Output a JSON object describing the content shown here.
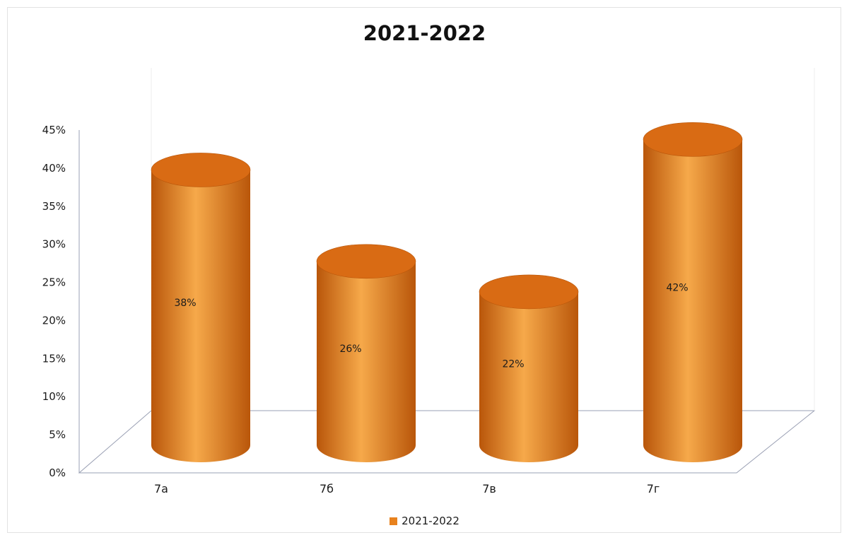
{
  "chart_data": {
    "type": "bar",
    "style": "3d-cylinder",
    "title": "2021-2022",
    "categories": [
      "7а",
      "7б",
      "7в",
      "7г"
    ],
    "series": [
      {
        "name": "2021-2022",
        "values": [
          38,
          26,
          22,
          42
        ],
        "data_labels": [
          "38%",
          "26%",
          "22%",
          "42%"
        ]
      }
    ],
    "ylim": [
      0,
      45
    ],
    "yticks": [
      "0%",
      "5%",
      "10%",
      "15%",
      "20%",
      "25%",
      "30%",
      "35%",
      "40%",
      "45%"
    ],
    "xlabel": "",
    "ylabel": "",
    "legend_position": "bottom",
    "grid": false
  },
  "colors": {
    "bar": "#e8821e",
    "bar_light": "#f6a94a",
    "bar_dark": "#b9560a",
    "bar_top": "#d96b14",
    "axis": "#9aa0b4"
  }
}
